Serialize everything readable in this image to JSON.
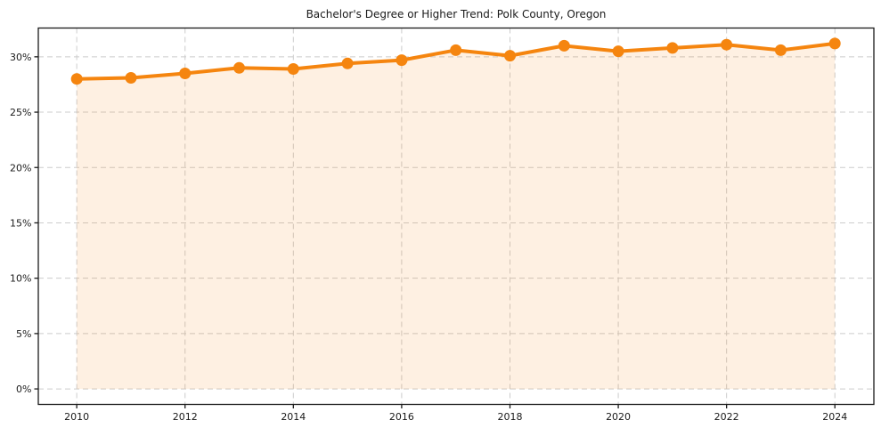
{
  "title": "Bachelor's Degree or Higher Trend: Polk County, Oregon",
  "colors": {
    "line": "#f5850f",
    "area_fill": "#f5850f",
    "area_fill_opacity": 0.12,
    "grid": "#cccccc",
    "spine": "#1a1a1a",
    "tick_label": "#1a1a1a",
    "title": "#1a1a1a",
    "background": "#ffffff"
  },
  "chart_data": {
    "type": "line",
    "title": "Bachelor's Degree or Higher Trend: Polk County, Oregon",
    "x": [
      2010,
      2011,
      2012,
      2013,
      2014,
      2015,
      2016,
      2017,
      2018,
      2019,
      2020,
      2021,
      2022,
      2023,
      2024
    ],
    "values": [
      28.0,
      28.1,
      28.5,
      29.0,
      28.9,
      29.4,
      29.7,
      30.6,
      30.1,
      31.0,
      30.5,
      30.8,
      31.1,
      30.6,
      31.2
    ],
    "unit": "%",
    "x_ticks": [
      2010,
      2012,
      2014,
      2016,
      2018,
      2020,
      2022,
      2024
    ],
    "x_tick_labels": [
      "2010",
      "2012",
      "2014",
      "2016",
      "2018",
      "2020",
      "2022",
      "2024"
    ],
    "y_ticks": [
      0,
      5,
      10,
      15,
      20,
      25,
      30
    ],
    "y_tick_labels": [
      "0%",
      "5%",
      "10%",
      "15%",
      "20%",
      "25%",
      "30%"
    ],
    "xlim": [
      2009.29,
      2024.72
    ],
    "ylim": [
      -1.4,
      32.6
    ],
    "grid": true,
    "legend": false,
    "marker": "circle",
    "area_fill_to": 0
  }
}
